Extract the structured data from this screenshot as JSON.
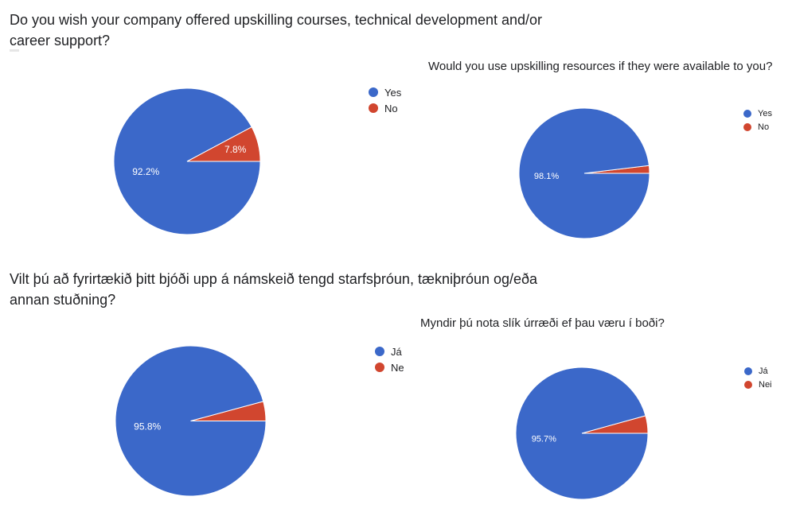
{
  "chart_data": [
    {
      "type": "pie",
      "title": "Do you wish your company offered upskilling courses, technical development and/or career support?",
      "categories": [
        "Yes",
        "No"
      ],
      "values": [
        92.2,
        7.8
      ],
      "colors": [
        "#3b68c9",
        "#d1462f"
      ],
      "labels": [
        "92.2%",
        "7.8%"
      ],
      "legend_position": "right"
    },
    {
      "type": "pie",
      "title": "Would you use upskilling resources if they were available to you?",
      "categories": [
        "Yes",
        "No"
      ],
      "values": [
        98.1,
        1.9
      ],
      "colors": [
        "#3b68c9",
        "#d1462f"
      ],
      "labels": [
        "98.1%",
        ""
      ],
      "legend_position": "right"
    },
    {
      "type": "pie",
      "title": "Vilt þú að fyrirtækið þitt bjóði upp á námskeið tengd starfsþróun, tækniþróun og/eða annan stuðning?",
      "categories": [
        "Já",
        "Ne"
      ],
      "values": [
        95.8,
        4.2
      ],
      "colors": [
        "#3b68c9",
        "#d1462f"
      ],
      "labels": [
        "95.8%",
        ""
      ],
      "legend_position": "right"
    },
    {
      "type": "pie",
      "title": "Myndir þú nota slík úrræði ef þau væru í boði?",
      "categories": [
        "Já",
        "Nei"
      ],
      "values": [
        95.7,
        4.3
      ],
      "colors": [
        "#3b68c9",
        "#d1462f"
      ],
      "labels": [
        "95.7%",
        ""
      ],
      "legend_position": "right"
    }
  ]
}
